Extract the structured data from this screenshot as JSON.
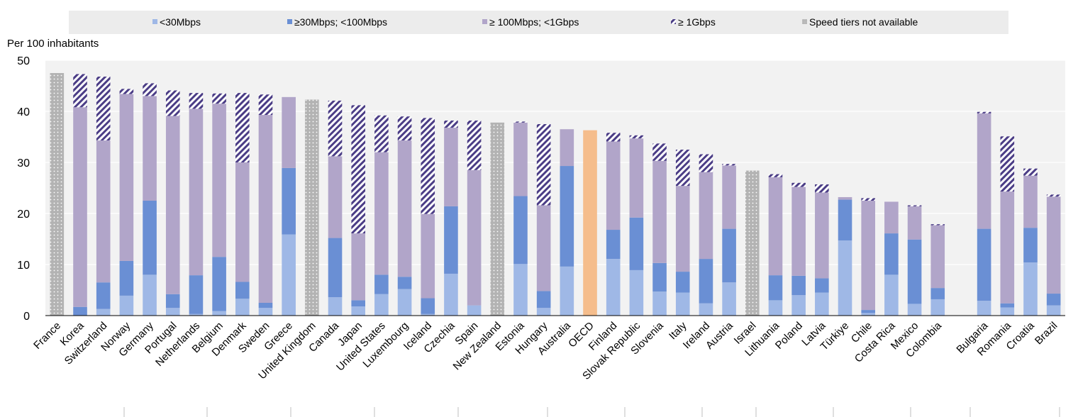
{
  "chart_data": {
    "type": "bar",
    "stacked": true,
    "y_unit_label": "Per 100 inhabitants",
    "ylim": [
      0,
      50
    ],
    "yticks": [
      0,
      10,
      20,
      30,
      40,
      50
    ],
    "grid": true,
    "legend_position": "top",
    "legend": [
      {
        "key": "lt30",
        "label": "<30Mbps",
        "color": "#9fb8e6",
        "pattern": "solid"
      },
      {
        "key": "b30_100",
        "label": "≥30Mbps;  <100Mbps",
        "color": "#6a8fd4",
        "pattern": "solid"
      },
      {
        "key": "b100_1g",
        "label": "≥ 100Mbps; <1Gbps",
        "color": "#b1a5c9",
        "pattern": "solid"
      },
      {
        "key": "ge1g",
        "label": "≥ 1Gbps",
        "color": "#4b3d86",
        "pattern": "stripes"
      },
      {
        "key": "na",
        "label": "Speed tiers not available",
        "color": "#b3b3b3",
        "pattern": "dots"
      }
    ],
    "highlight_color": "#f5bd8c",
    "categories": [
      "France",
      "Korea",
      "Switzerland",
      "Norway",
      "Germany",
      "Portugal",
      "Netherlands",
      "Belgium",
      "Denmark",
      "Sweden",
      "Greece",
      "United Kingdom",
      "Canada",
      "Japan",
      "United States",
      "Luxembourg",
      "Iceland",
      "Czechia",
      "Spain",
      "New Zealand",
      "Estonia",
      "Hungary",
      "Australia",
      "OECD",
      "Finland",
      "Slovak Republic",
      "Slovenia",
      "Italy",
      "Ireland",
      "Austria",
      "Israel",
      "Lithuania",
      "Poland",
      "Latvia",
      "Türkiye",
      "Chile",
      "Costa Rica",
      "Mexico",
      "Colombia",
      "",
      "Bulgaria",
      "Romania",
      "Croatia",
      "Brazil"
    ],
    "series": [
      {
        "key": "lt30",
        "values": [
          0,
          0,
          1.3,
          3.9,
          8.0,
          1.5,
          0.3,
          0.9,
          3.3,
          1.5,
          15.9,
          0,
          3.6,
          1.8,
          4.2,
          5.2,
          0.3,
          8.2,
          2.0,
          0,
          10.1,
          1.5,
          9.6,
          0,
          11.1,
          8.9,
          4.7,
          4.5,
          2.4,
          6.5,
          0,
          3.0,
          4.0,
          4.5,
          14.7,
          0.5,
          8.0,
          2.3,
          3.2,
          0,
          2.9,
          1.6,
          10.4,
          2.0
        ]
      },
      {
        "key": "b30_100",
        "values": [
          0,
          1.7,
          5.2,
          6.8,
          14.5,
          2.7,
          7.6,
          10.6,
          3.3,
          1.0,
          13.0,
          0,
          11.6,
          1.2,
          3.8,
          2.4,
          3.1,
          13.2,
          0,
          0,
          13.3,
          3.3,
          19.7,
          0,
          5.7,
          10.3,
          5.6,
          4.1,
          8.7,
          10.5,
          0,
          4.9,
          3.8,
          2.8,
          8.0,
          0.6,
          8.1,
          12.6,
          2.2,
          0,
          14.1,
          0.8,
          6.8,
          2.3
        ]
      },
      {
        "key": "b100_1g",
        "values": [
          0,
          39.1,
          27.8,
          32.7,
          20.5,
          34.9,
          32.6,
          30.0,
          23.4,
          36.8,
          13.9,
          0,
          16.0,
          13.1,
          24.0,
          26.7,
          16.5,
          15.4,
          26.5,
          0,
          14.4,
          16.8,
          7.2,
          0,
          17.3,
          15.5,
          20.0,
          16.8,
          17.0,
          12.4,
          0,
          19.2,
          17.4,
          16.8,
          0.5,
          21.4,
          6.2,
          6.5,
          12.3,
          0,
          22.6,
          21.9,
          10.2,
          19.0
        ]
      },
      {
        "key": "ge1g",
        "values": [
          0,
          6.5,
          12.5,
          1.0,
          2.5,
          5.0,
          3.1,
          2.0,
          13.6,
          4.0,
          0,
          0,
          10.9,
          25.1,
          7.2,
          4.7,
          18.8,
          1.4,
          9.7,
          0,
          0.2,
          15.9,
          0,
          0,
          1.7,
          0.6,
          3.4,
          7.1,
          3.5,
          0.3,
          0,
          0.6,
          0.8,
          1.6,
          0,
          0.5,
          0,
          0.2,
          0.2,
          0,
          0.3,
          10.8,
          1.4,
          0.4
        ]
      },
      {
        "key": "na",
        "values": [
          47.5,
          0,
          0,
          0,
          0,
          0,
          0,
          0,
          0,
          0,
          0,
          42.3,
          0,
          0,
          0,
          0,
          0,
          0,
          0,
          37.8,
          0,
          0,
          0,
          0,
          0,
          0,
          0,
          0,
          0,
          0,
          28.4,
          0,
          0,
          0,
          0,
          0,
          0,
          0,
          0,
          0,
          0,
          0,
          0,
          0
        ]
      }
    ],
    "oecd_total": 36.3
  }
}
